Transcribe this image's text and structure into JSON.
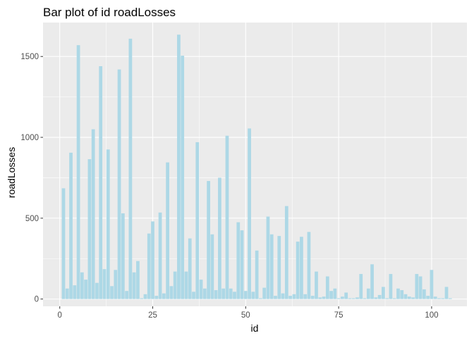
{
  "chart_data": {
    "type": "bar",
    "title": "Bar plot of id roadLosses",
    "xlabel": "id",
    "ylabel": "roadLosses",
    "xlim": [
      -4.5,
      109.5
    ],
    "ylim": [
      -45,
      1710
    ],
    "xticks": [
      0,
      25,
      50,
      75,
      100
    ],
    "yticks": [
      0,
      500,
      1000,
      1500
    ],
    "grid": true,
    "legend": "none",
    "x": [
      1,
      2,
      3,
      4,
      5,
      6,
      7,
      8,
      9,
      10,
      11,
      12,
      13,
      14,
      15,
      16,
      17,
      18,
      19,
      20,
      21,
      22,
      23,
      24,
      25,
      26,
      27,
      28,
      29,
      30,
      31,
      32,
      33,
      34,
      35,
      36,
      37,
      38,
      39,
      40,
      41,
      42,
      43,
      44,
      45,
      46,
      47,
      48,
      49,
      50,
      51,
      52,
      53,
      54,
      55,
      56,
      57,
      58,
      59,
      60,
      61,
      62,
      63,
      64,
      65,
      66,
      67,
      68,
      69,
      70,
      71,
      72,
      73,
      74,
      75,
      76,
      77,
      78,
      79,
      80,
      81,
      82,
      83,
      84,
      85,
      86,
      87,
      88,
      89,
      90,
      91,
      92,
      93,
      94,
      95,
      96,
      97,
      98,
      99,
      100,
      101,
      102,
      103,
      104,
      105
    ],
    "values": [
      685,
      65,
      905,
      85,
      1570,
      165,
      120,
      865,
      1050,
      100,
      1440,
      185,
      925,
      80,
      180,
      1420,
      530,
      50,
      1610,
      165,
      235,
      5,
      30,
      405,
      480,
      20,
      535,
      35,
      845,
      80,
      170,
      1635,
      1505,
      170,
      375,
      45,
      970,
      120,
      65,
      730,
      400,
      55,
      750,
      65,
      1010,
      65,
      45,
      475,
      425,
      50,
      1055,
      45,
      300,
      5,
      70,
      510,
      400,
      20,
      390,
      35,
      575,
      20,
      30,
      355,
      385,
      30,
      415,
      20,
      170,
      10,
      15,
      140,
      50,
      65,
      5,
      15,
      40,
      5,
      5,
      10,
      155,
      5,
      65,
      215,
      10,
      25,
      75,
      5,
      155,
      5,
      65,
      55,
      30,
      15,
      10,
      155,
      140,
      60,
      20,
      180,
      15,
      5,
      5,
      75,
      5
    ],
    "bar_color": "#add8e6",
    "panel_color": "#ebebeb",
    "grid_major_color": "#ffffff"
  }
}
